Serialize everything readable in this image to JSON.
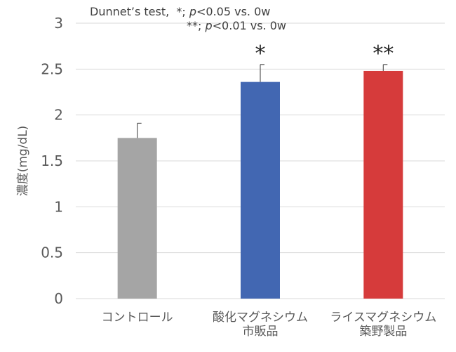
{
  "annotations": {
    "line1": {
      "test": "Dunnet’s test,",
      "mark": "*;",
      "p": "p",
      "cond": "<0.05  vs. 0w"
    },
    "line2": {
      "mark": "**;",
      "p": "p",
      "cond": "<0.01  vs. 0w"
    }
  },
  "chart_data": {
    "type": "bar",
    "title": "",
    "xlabel": "",
    "ylabel": "濃度(mg/dL)",
    "ylim": [
      0,
      3
    ],
    "yticks": [
      "0",
      "0.5",
      "1",
      "1.5",
      "2",
      "2.5",
      "3"
    ],
    "grid": true,
    "categories": [
      [
        "コントロール"
      ],
      [
        "酸化マグネシウム",
        "市販品"
      ],
      [
        "ライスマグネシウム",
        "築野製品"
      ]
    ],
    "values": [
      1.75,
      2.36,
      2.48
    ],
    "errors": [
      0.16,
      0.19,
      0.07
    ],
    "significance": [
      "",
      "*",
      "**"
    ],
    "colors": [
      "#a5a5a5",
      "#4267b2",
      "#d63b3b"
    ],
    "gridline_color": "#d9d9d9"
  }
}
